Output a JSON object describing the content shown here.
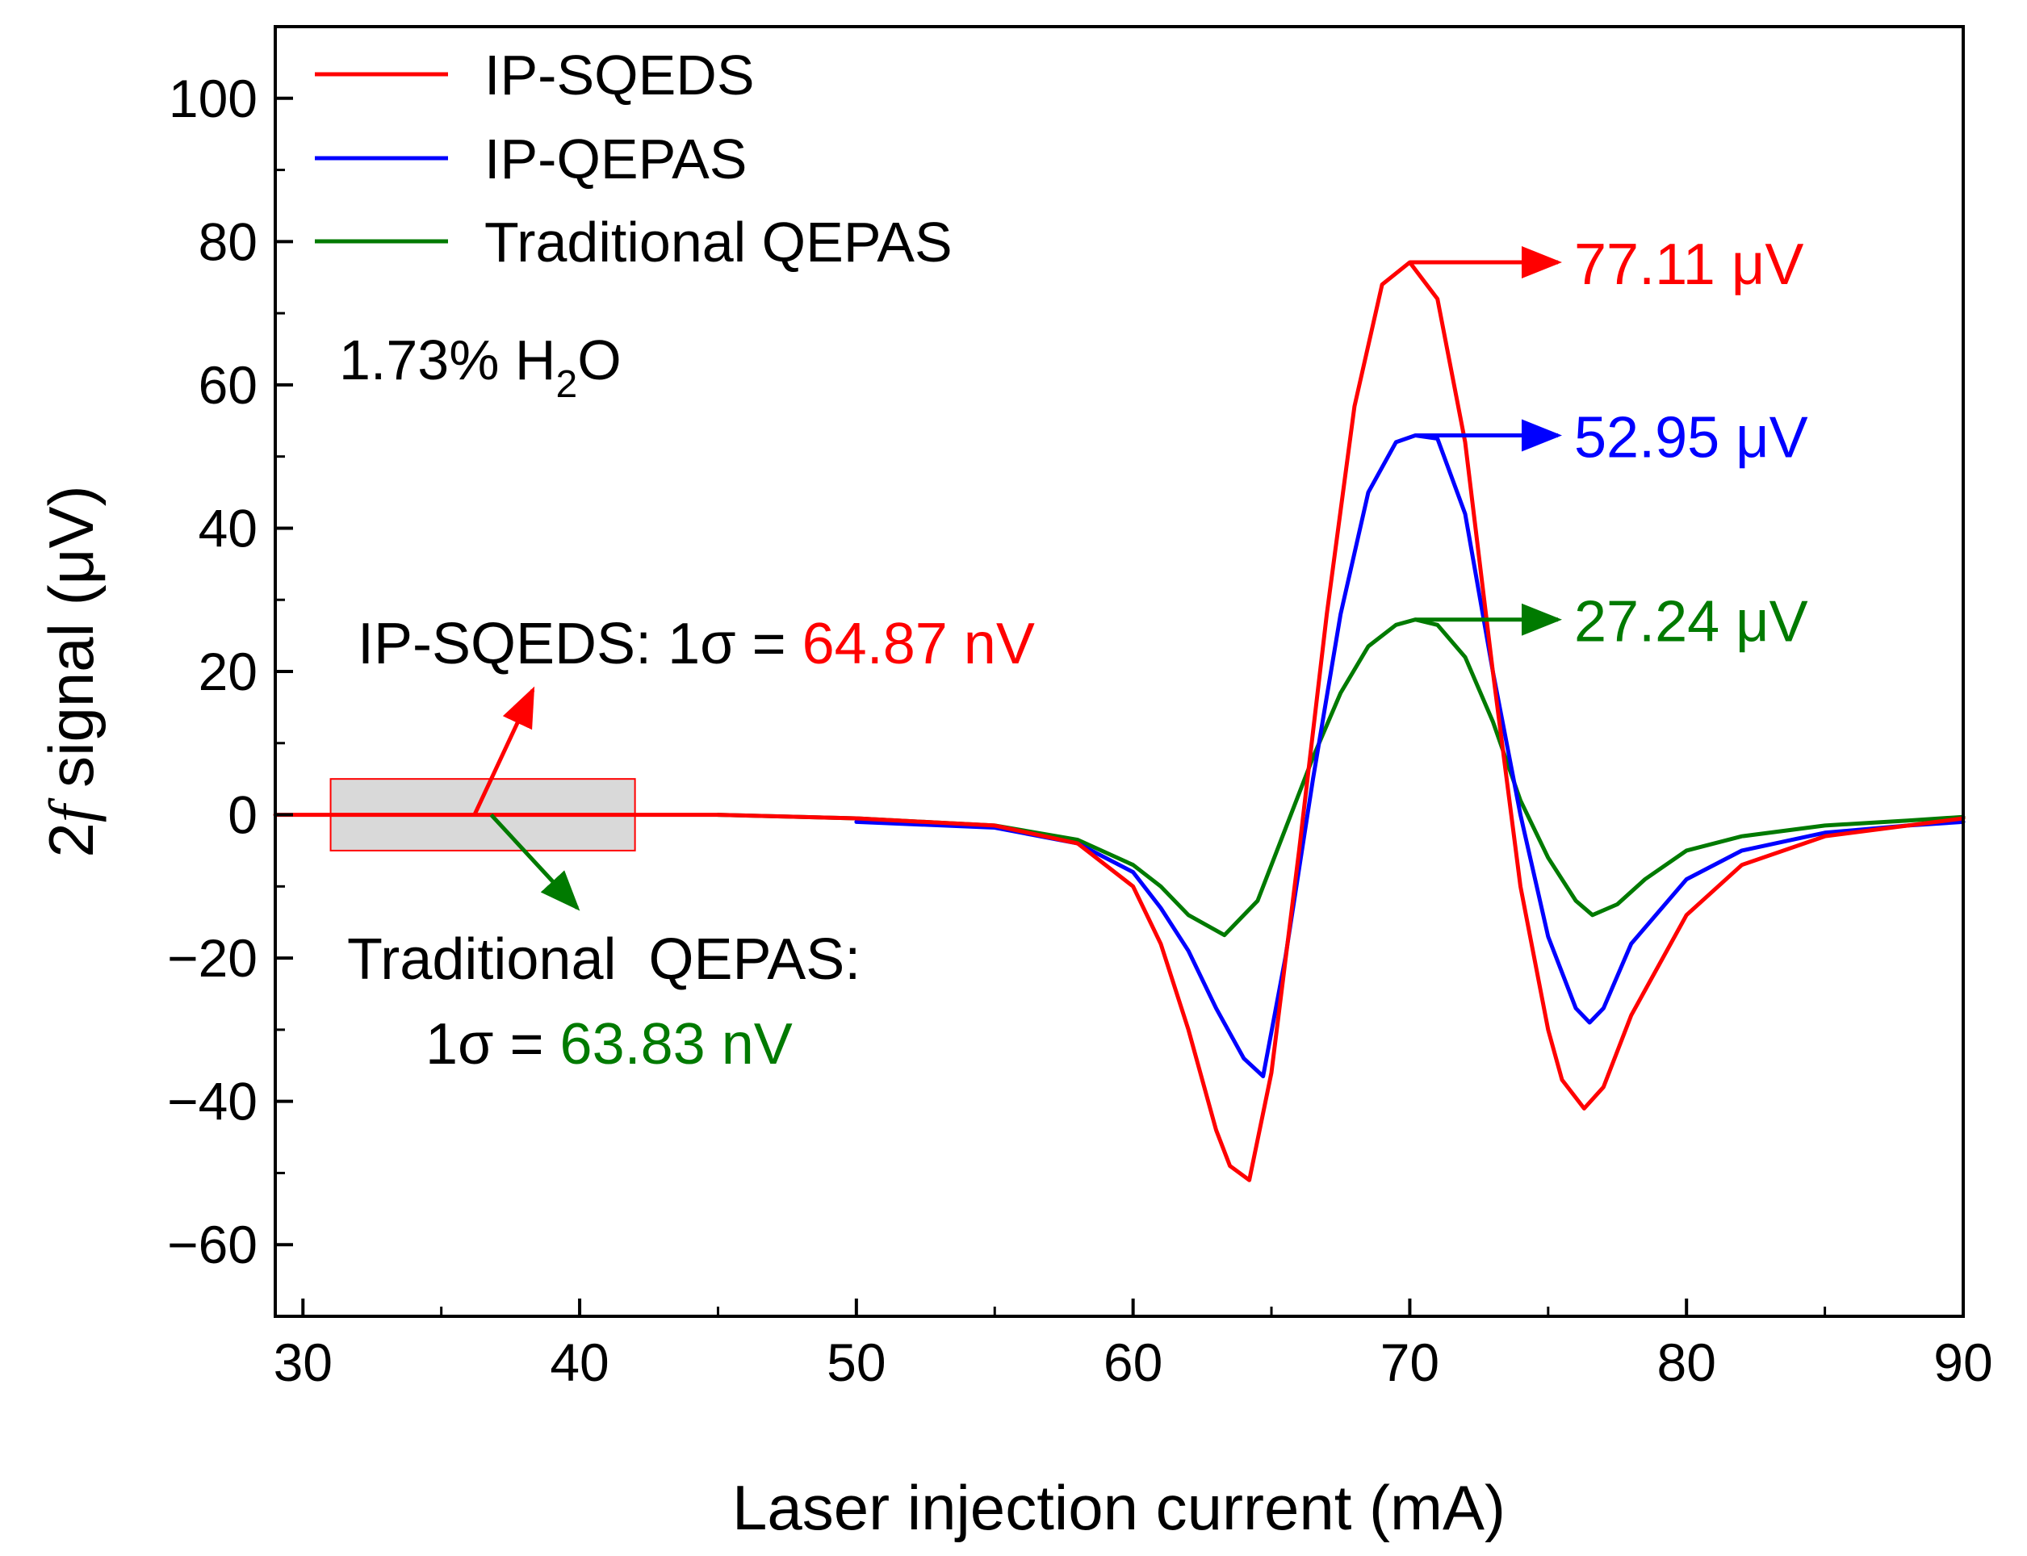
{
  "chart_data": {
    "type": "line",
    "xlabel": "Laser injection current (mA)",
    "ylabel": {
      "prefix": "2",
      "italic": "f",
      "suffix": " signal (μV)"
    },
    "xlim": [
      29,
      90
    ],
    "ylim": [
      -70,
      110
    ],
    "x_ticks": [
      30,
      40,
      50,
      60,
      70,
      80,
      90
    ],
    "x_tick_labels": [
      "30",
      "40",
      "50",
      "60",
      "70",
      "80",
      "90"
    ],
    "y_ticks": [
      -60,
      -40,
      -20,
      0,
      20,
      40,
      60,
      80,
      100
    ],
    "y_tick_labels": [
      "−60",
      "−40",
      "−20",
      "0",
      "20",
      "40",
      "60",
      "80",
      "100"
    ],
    "grid": false,
    "legend_position": "top-left",
    "series": [
      {
        "name": "IP-SQEDS",
        "color": "#ff0000",
        "x": [
          29.0,
          35.0,
          40.0,
          45.0,
          50.0,
          55.0,
          58.0,
          60.0,
          61.0,
          62.0,
          63.0,
          63.5,
          64.2,
          65.0,
          66.0,
          67.0,
          68.0,
          69.0,
          70.0,
          71.0,
          72.0,
          73.0,
          74.0,
          75.0,
          75.5,
          76.3,
          77.0,
          78.0,
          80.0,
          82.0,
          85.0,
          88.0,
          90.0
        ],
        "y": [
          0.0,
          0.0,
          0.0,
          0.0,
          -0.5,
          -1.5,
          -4.0,
          -10.0,
          -18.0,
          -30.0,
          -44.0,
          -49.0,
          -51.0,
          -36.0,
          -5.0,
          28.0,
          57.0,
          74.0,
          77.1,
          72.0,
          52.0,
          20.0,
          -10.0,
          -30.0,
          -37.0,
          -41.0,
          -38.0,
          -28.0,
          -14.0,
          -7.0,
          -3.0,
          -1.5,
          -0.5
        ]
      },
      {
        "name": "IP-QEPAS",
        "color": "#0000ff",
        "x": [
          50.0,
          55.0,
          58.0,
          60.0,
          61.0,
          62.0,
          63.0,
          64.0,
          64.7,
          65.5,
          66.5,
          67.5,
          68.5,
          69.5,
          70.2,
          71.0,
          72.0,
          73.0,
          74.0,
          75.0,
          76.0,
          76.5,
          77.0,
          78.0,
          80.0,
          82.0,
          85.0,
          88.0,
          90.0
        ],
        "y": [
          -1.0,
          -1.8,
          -4.0,
          -8.0,
          -13.0,
          -19.0,
          -27.0,
          -34.0,
          -36.5,
          -20.0,
          5.0,
          28.0,
          45.0,
          52.0,
          52.95,
          52.5,
          42.0,
          20.0,
          0.0,
          -17.0,
          -27.0,
          -29.0,
          -27.0,
          -18.0,
          -9.0,
          -5.0,
          -2.5,
          -1.5,
          -1.0
        ]
      },
      {
        "name": "Traditional QEPAS",
        "color": "#007a00",
        "x": [
          45.0,
          50.0,
          55.0,
          58.0,
          60.0,
          61.0,
          62.0,
          63.3,
          64.5,
          65.5,
          66.5,
          67.5,
          68.5,
          69.5,
          70.2,
          71.0,
          72.0,
          73.0,
          74.0,
          75.0,
          76.0,
          76.6,
          77.5,
          78.5,
          80.0,
          82.0,
          85.0,
          88.0,
          90.0
        ],
        "y": [
          0.0,
          -0.5,
          -1.5,
          -3.5,
          -7.0,
          -10.0,
          -14.0,
          -16.8,
          -12.0,
          -2.0,
          8.0,
          17.0,
          23.5,
          26.5,
          27.24,
          26.5,
          22.0,
          13.0,
          2.0,
          -6.0,
          -12.0,
          -14.0,
          -12.5,
          -9.0,
          -5.0,
          -3.0,
          -1.5,
          -0.8,
          -0.3
        ]
      }
    ],
    "annotations": {
      "condition": {
        "prefix": "1.73% H",
        "sub": "2",
        "suffix": "O"
      },
      "peak_labels": [
        {
          "series": "IP-SQEDS",
          "peak_x": 70.0,
          "peak_y": 77.11,
          "text": "77.11 μV",
          "color": "#ff0000"
        },
        {
          "series": "IP-QEPAS",
          "peak_x": 70.2,
          "peak_y": 52.95,
          "text": "52.95 μV",
          "color": "#0000ff"
        },
        {
          "series": "Traditional QEPAS",
          "peak_x": 70.2,
          "peak_y": 27.24,
          "text": "27.24 μV",
          "color": "#007a00"
        }
      ],
      "noise_box": {
        "x_range": [
          31.0,
          42.0
        ],
        "y_range": [
          -5.0,
          5.0
        ],
        "fill": "#d9d9d9",
        "stroke": "#ff0000"
      },
      "noise_sqeds": {
        "label": "IP-SQEDS: 1σ = ",
        "value": "64.87 nV",
        "value_color": "#ff0000",
        "arrow_color": "#ff0000"
      },
      "noise_qepas": {
        "label_line1": "Traditional  QEPAS:",
        "label_line2": "1σ = ",
        "value": "63.83 nV",
        "value_color": "#007a00",
        "arrow_color": "#007a00"
      }
    }
  }
}
